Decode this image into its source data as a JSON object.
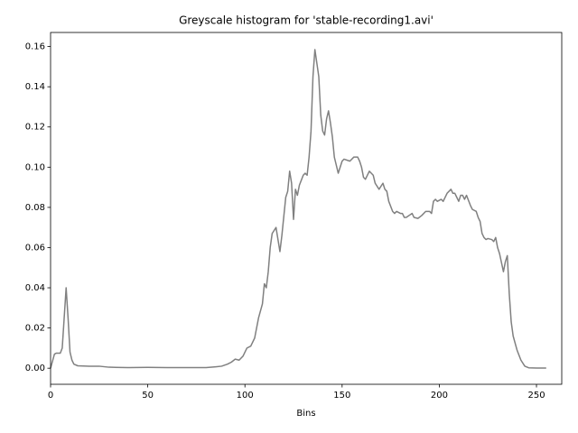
{
  "chart_data": {
    "type": "line",
    "title": "Greyscale histogram for 'stable-recording1.avi'",
    "x_label": "Bins",
    "xlim": [
      0,
      263
    ],
    "ylim": [
      -0.008,
      0.167
    ],
    "xticks": [
      0,
      50,
      100,
      150,
      200,
      250
    ],
    "yticks": [
      {
        "value": 0,
        "label": "0.00"
      },
      {
        "value": 0.02,
        "label": "0.02"
      },
      {
        "value": 0.04,
        "label": "0.04"
      },
      {
        "value": 0.06,
        "label": "0.06"
      },
      {
        "value": 0.08,
        "label": "0.08"
      },
      {
        "value": 0.1,
        "label": "0.10"
      },
      {
        "value": 0.12,
        "label": "0.12"
      },
      {
        "value": 0.14,
        "label": "0.14"
      },
      {
        "value": 0.16,
        "label": "0.16"
      }
    ],
    "series": [
      {
        "color": "#808080",
        "x": [
          0,
          2,
          3,
          5,
          6,
          7,
          8,
          9,
          10,
          11,
          12,
          14,
          20,
          25,
          30,
          40,
          50,
          60,
          70,
          80,
          85,
          88,
          91,
          93,
          95,
          97,
          99,
          101,
          103,
          105,
          107,
          109,
          110,
          111,
          112,
          113,
          114,
          116,
          118,
          119,
          121,
          122,
          123,
          124,
          125,
          126,
          127,
          128,
          130,
          131,
          132,
          133,
          134,
          135,
          136,
          138,
          139,
          140,
          141,
          142,
          143,
          144,
          145,
          146,
          148,
          150,
          151,
          154,
          156,
          158,
          159,
          160,
          161,
          162,
          164,
          166,
          167,
          169,
          171,
          172,
          173,
          174,
          176,
          177,
          178,
          180,
          181,
          182,
          183,
          186,
          187,
          189,
          191,
          193,
          195,
          196,
          197,
          198,
          199,
          201,
          202,
          204,
          206,
          207,
          208,
          209,
          210,
          211,
          212,
          213,
          214,
          216,
          217,
          219,
          220,
          221,
          222,
          223,
          224,
          225,
          227,
          228,
          229,
          230,
          231,
          233,
          234,
          235,
          236,
          237,
          238,
          240,
          242,
          244,
          246,
          250,
          255
        ],
        "values": [
          0,
          0.007,
          0.0075,
          0.0075,
          0.01,
          0.025,
          0.04,
          0.025,
          0.008,
          0.004,
          0.002,
          0.0012,
          0.001,
          0.001,
          0.0005,
          0.0003,
          0.0004,
          0.0003,
          0.0003,
          0.0003,
          0.0007,
          0.001,
          0.002,
          0.003,
          0.0045,
          0.004,
          0.006,
          0.01,
          0.011,
          0.015,
          0.025,
          0.032,
          0.042,
          0.04,
          0.048,
          0.06,
          0.067,
          0.07,
          0.058,
          0.066,
          0.085,
          0.088,
          0.098,
          0.092,
          0.074,
          0.089,
          0.086,
          0.091,
          0.096,
          0.097,
          0.096,
          0.105,
          0.118,
          0.145,
          0.1585,
          0.145,
          0.126,
          0.118,
          0.116,
          0.124,
          0.128,
          0.122,
          0.115,
          0.105,
          0.097,
          0.103,
          0.104,
          0.103,
          0.105,
          0.105,
          0.103,
          0.1,
          0.095,
          0.094,
          0.098,
          0.096,
          0.092,
          0.089,
          0.092,
          0.089,
          0.088,
          0.083,
          0.078,
          0.077,
          0.078,
          0.077,
          0.077,
          0.075,
          0.075,
          0.077,
          0.075,
          0.0745,
          0.076,
          0.078,
          0.078,
          0.077,
          0.083,
          0.084,
          0.083,
          0.084,
          0.083,
          0.087,
          0.089,
          0.087,
          0.087,
          0.085,
          0.083,
          0.086,
          0.086,
          0.084,
          0.086,
          0.081,
          0.079,
          0.078,
          0.075,
          0.073,
          0.067,
          0.065,
          0.064,
          0.0645,
          0.064,
          0.063,
          0.065,
          0.06,
          0.057,
          0.048,
          0.053,
          0.056,
          0.037,
          0.023,
          0.016,
          0.009,
          0.004,
          0.001,
          0.0002,
          0.0001,
          0.0001
        ]
      }
    ]
  }
}
